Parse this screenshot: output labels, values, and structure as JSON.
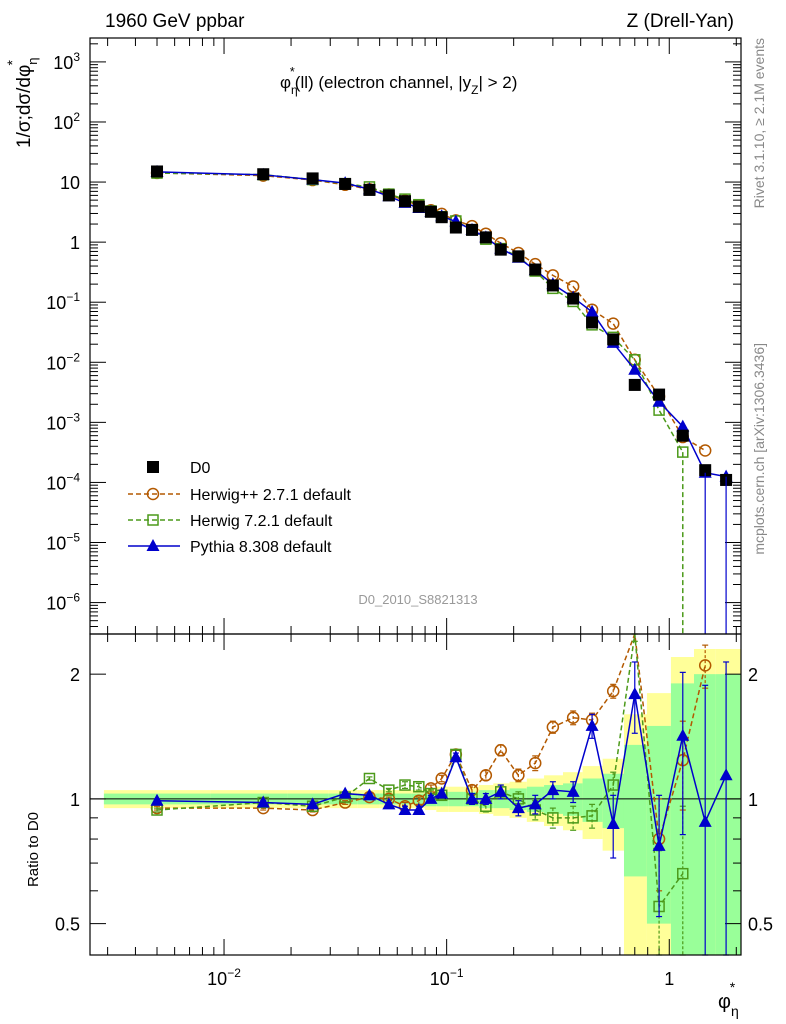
{
  "header": {
    "left": "1960 GeV ppbar",
    "right": "Z (Drell-Yan)"
  },
  "side_labels": {
    "rivet": "Rivet 3.1.10, ≥ 2.1M events",
    "mcplots": "mcplots.cern.ch [arXiv:1306.3436]"
  },
  "analysis_id": "D0_2010_S8821313",
  "chart_data": [
    {
      "type": "scatter",
      "panel": "main",
      "title_parts": {
        "phi": "φ",
        "sup": "*",
        "sub": "η",
        "mid": "(ll) (electron channel, |y",
        "ysub": "Z",
        "end": "| > 2)"
      },
      "ylabel_parts": {
        "pre": "1/σ;dσ/dφ",
        "sup": "*",
        "sub": "η"
      },
      "xlabel_parts": {
        "phi": "φ",
        "sup": "*",
        "sub": "η"
      },
      "xscale": "log",
      "yscale": "log",
      "xlim": [
        0.0025,
        2.1
      ],
      "ylim": [
        3e-07,
        2500
      ],
      "x_ticks": [
        {
          "v": 0.01,
          "m": "10",
          "e": "−2"
        },
        {
          "v": 0.1,
          "m": "10",
          "e": "−1"
        },
        {
          "v": 1,
          "m": "1",
          "e": ""
        }
      ],
      "y_ticks": [
        {
          "v": 1000,
          "m": "10",
          "e": "3"
        },
        {
          "v": 100,
          "m": "10",
          "e": "2"
        },
        {
          "v": 10,
          "m": "10",
          "e": ""
        },
        {
          "v": 1,
          "m": "1",
          "e": ""
        },
        {
          "v": 0.1,
          "m": "10",
          "e": "−1"
        },
        {
          "v": 0.01,
          "m": "10",
          "e": "−2"
        },
        {
          "v": 0.001,
          "m": "10",
          "e": "−3"
        },
        {
          "v": 0.0001,
          "m": "10",
          "e": "−4"
        },
        {
          "v": 1e-05,
          "m": "10",
          "e": "−5"
        },
        {
          "v": 1e-06,
          "m": "10",
          "e": "−6"
        }
      ],
      "x": [
        0.005,
        0.015,
        0.025,
        0.035,
        0.045,
        0.055,
        0.065,
        0.075,
        0.085,
        0.095,
        0.11,
        0.13,
        0.15,
        0.175,
        0.21,
        0.25,
        0.3,
        0.37,
        0.45,
        0.56,
        0.7,
        0.9,
        1.15,
        1.45,
        1.8
      ],
      "legend_position": "lower-left",
      "series": [
        {
          "name": "D0",
          "color": "#000000",
          "marker": "square-filled",
          "style": "points",
          "values": [
            15,
            13.5,
            11.5,
            9.3,
            7.4,
            6.0,
            4.8,
            3.9,
            3.2,
            2.6,
            1.75,
            1.6,
            1.2,
            0.75,
            0.58,
            0.35,
            0.19,
            0.115,
            0.046,
            0.024,
            0.0042,
            0.0029,
            0.0006,
            0.00016,
            0.00011
          ]
        },
        {
          "name": "Herwig++ 2.7.1 default",
          "color": "#b35900",
          "marker": "circle-open",
          "style": "dashed",
          "values": [
            14.2,
            12.8,
            10.8,
            9.0,
            7.6,
            6.2,
            4.9,
            4.1,
            3.4,
            2.95,
            2.3,
            1.85,
            1.38,
            0.96,
            0.66,
            0.43,
            0.28,
            0.183,
            0.075,
            0.044,
            0.011,
            0.0027,
            0.00057,
            0.00034,
            null
          ]
        },
        {
          "name": "Herwig 7.2.1 default",
          "color": "#4c9a1a",
          "marker": "square-open",
          "style": "dashed",
          "values": [
            14.1,
            13.3,
            11.0,
            9.4,
            8.3,
            6.3,
            5.2,
            4.2,
            3.3,
            2.65,
            2.25,
            1.6,
            1.12,
            0.78,
            0.58,
            0.33,
            0.17,
            0.103,
            0.042,
            0.026,
            0.011,
            0.0016,
            0.00032,
            null,
            null
          ]
        },
        {
          "name": "Pythia 8.308 default",
          "color": "#0000cc",
          "marker": "triangle-filled",
          "style": "solid",
          "values": [
            14.8,
            13.2,
            11.0,
            9.6,
            7.6,
            5.8,
            4.5,
            3.7,
            3.2,
            2.7,
            2.2,
            1.6,
            1.2,
            0.78,
            0.55,
            0.34,
            0.2,
            0.12,
            0.069,
            0.021,
            0.0075,
            0.0022,
            0.00085,
            0.000145,
            0.000125
          ]
        }
      ]
    },
    {
      "type": "line",
      "panel": "ratio",
      "ylabel": "Ratio to D0",
      "yscale": "log",
      "xscale": "log",
      "xlim": [
        0.0025,
        2.1
      ],
      "ylim": [
        0.42,
        2.5
      ],
      "y_ticks": [
        {
          "v": 0.5,
          "label": "0.5"
        },
        {
          "v": 1,
          "label": "1"
        },
        {
          "v": 2,
          "label": "2"
        }
      ],
      "x": [
        0.005,
        0.015,
        0.025,
        0.035,
        0.045,
        0.055,
        0.065,
        0.075,
        0.085,
        0.095,
        0.11,
        0.13,
        0.15,
        0.175,
        0.21,
        0.25,
        0.3,
        0.37,
        0.45,
        0.56,
        0.7,
        0.9,
        1.15,
        1.45,
        1.8
      ],
      "band_inner": [
        0.03,
        0.03,
        0.03,
        0.03,
        0.03,
        0.03,
        0.03,
        0.03,
        0.04,
        0.04,
        0.04,
        0.04,
        0.05,
        0.05,
        0.06,
        0.07,
        0.08,
        0.09,
        0.12,
        0.15,
        0.35,
        0.5,
        0.9,
        1.0,
        1.0
      ],
      "band_outer": [
        0.05,
        0.05,
        0.05,
        0.05,
        0.05,
        0.05,
        0.05,
        0.05,
        0.06,
        0.07,
        0.07,
        0.07,
        0.08,
        0.09,
        0.1,
        0.12,
        0.14,
        0.16,
        0.2,
        0.25,
        0.6,
        0.8,
        1.2,
        1.3,
        1.3
      ],
      "series": [
        {
          "name": "Herwig++ 2.7.1 default",
          "color": "#b35900",
          "marker": "circle-open",
          "style": "dashed",
          "values": [
            0.95,
            0.95,
            0.94,
            0.98,
            1.01,
            1.0,
            0.96,
            0.99,
            1.06,
            1.12,
            1.28,
            1.05,
            1.14,
            1.31,
            1.14,
            1.22,
            1.49,
            1.57,
            1.55,
            1.82,
            2.6,
            0.8,
            1.24,
            2.1,
            null
          ],
          "errors": [
            0.01,
            0.01,
            0.01,
            0.01,
            0.01,
            0.01,
            0.02,
            0.02,
            0.02,
            0.02,
            0.03,
            0.03,
            0.03,
            0.04,
            0.04,
            0.05,
            0.05,
            0.06,
            0.06,
            0.07,
            0.1,
            0.2,
            0.3,
            0.25,
            null
          ]
        },
        {
          "name": "Herwig 7.2.1 default",
          "color": "#4c9a1a",
          "marker": "square-open",
          "style": "dashed",
          "values": [
            0.94,
            0.98,
            0.96,
            1.01,
            1.12,
            1.05,
            1.08,
            1.07,
            1.03,
            1.02,
            1.28,
            1.0,
            0.96,
            1.04,
            1.0,
            0.94,
            0.9,
            0.9,
            0.91,
            1.08,
            2.6,
            0.55,
            0.66,
            null,
            null
          ],
          "errors": [
            0.01,
            0.01,
            0.01,
            0.01,
            0.01,
            0.01,
            0.02,
            0.02,
            0.02,
            0.02,
            0.03,
            0.03,
            0.03,
            0.04,
            0.04,
            0.05,
            0.05,
            0.06,
            0.06,
            0.08,
            0.2,
            0.2,
            0.3,
            null,
            null
          ]
        },
        {
          "name": "Pythia 8.308 default",
          "color": "#0000cc",
          "marker": "triangle-filled",
          "style": "solid",
          "values": [
            0.99,
            0.98,
            0.97,
            1.03,
            1.02,
            0.97,
            0.94,
            0.94,
            1.0,
            1.03,
            1.26,
            1.0,
            1.0,
            1.04,
            0.95,
            0.97,
            1.05,
            1.04,
            1.5,
            0.87,
            1.79,
            0.77,
            1.42,
            0.88,
            1.14
          ],
          "errors": [
            0.01,
            0.01,
            0.01,
            0.01,
            0.01,
            0.01,
            0.02,
            0.02,
            0.02,
            0.02,
            0.03,
            0.03,
            0.03,
            0.04,
            0.04,
            0.05,
            0.05,
            0.06,
            0.1,
            0.15,
            0.35,
            0.25,
            0.6,
            1.0,
            1.0
          ]
        }
      ]
    }
  ]
}
